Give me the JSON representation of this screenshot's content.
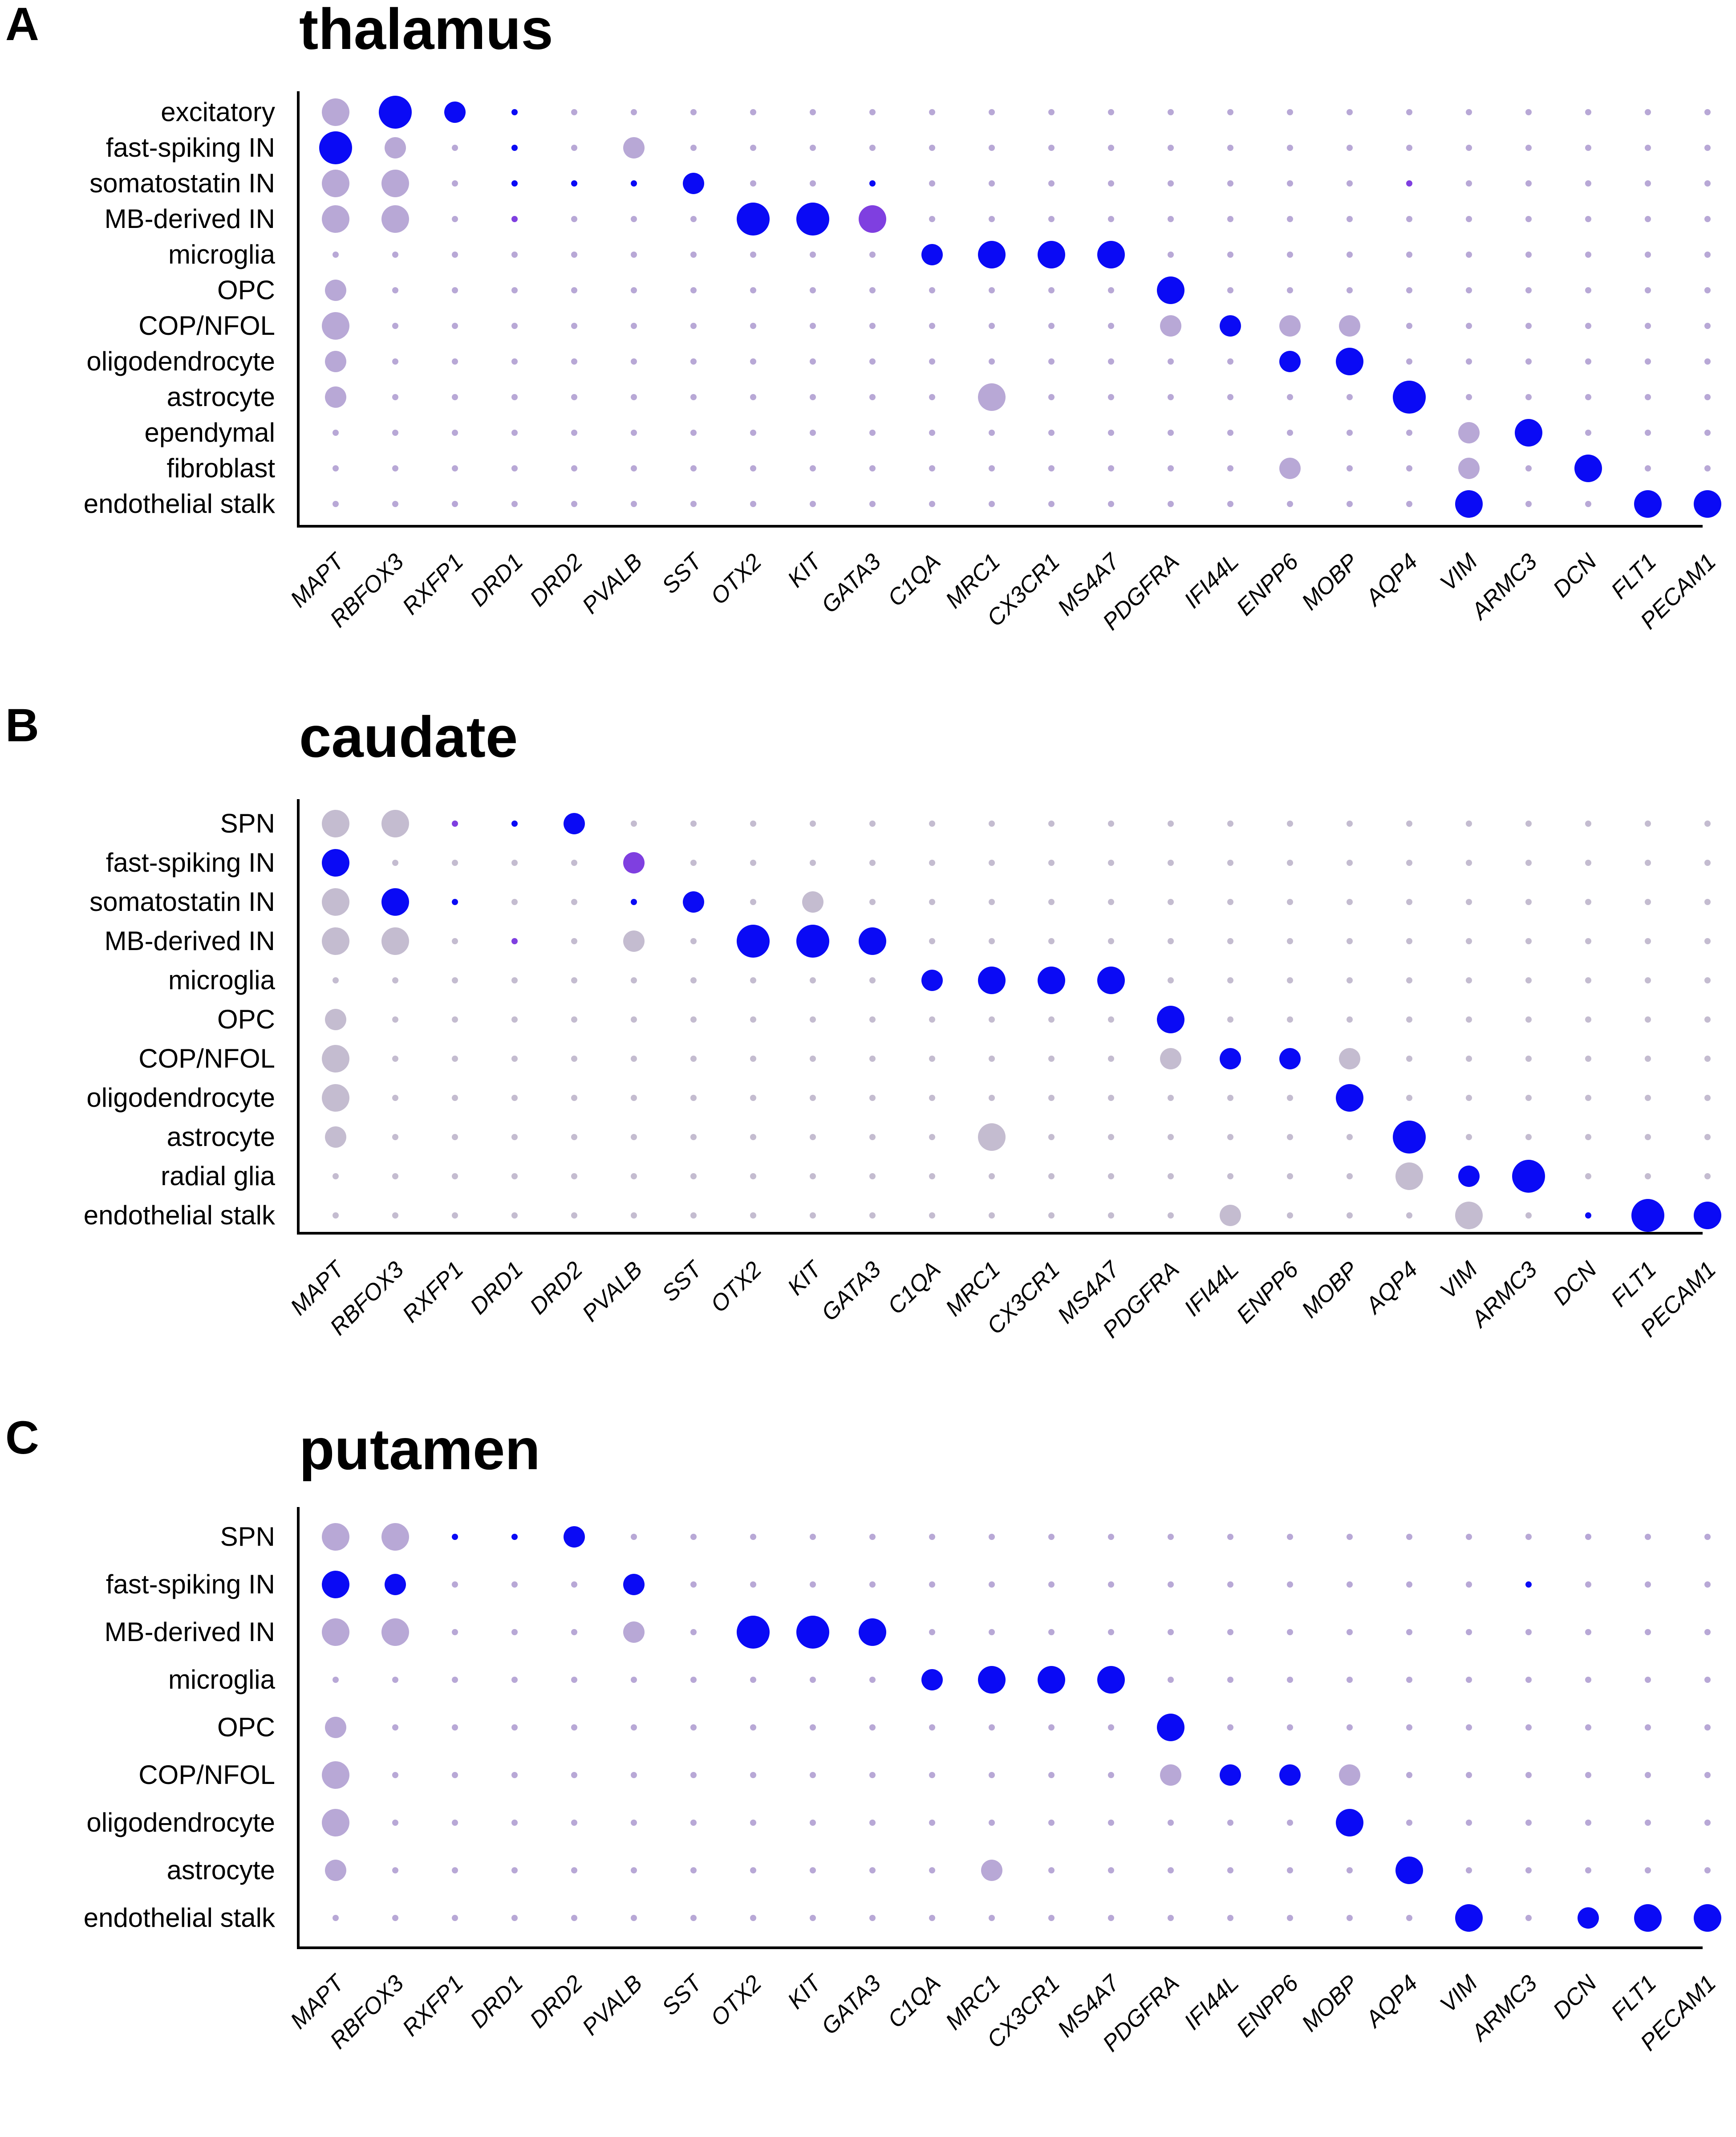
{
  "genes": [
    "MAPT",
    "RBFOX3",
    "RXFP1",
    "DRD1",
    "DRD2",
    "PVALB",
    "SST",
    "OTX2",
    "KIT",
    "GATA3",
    "C1QA",
    "MRC1",
    "CX3CR1",
    "MS4A7",
    "PDGFRA",
    "IFI44L",
    "ENPP6",
    "MOBP",
    "AQP4",
    "VIM",
    "ARMC3",
    "DCN",
    "FLT1",
    "PECAM1"
  ],
  "colors": {
    "high": "#0a0af5",
    "mid": "#7f3fe0",
    "low": "#b8a8d6",
    "grey": "#c4bcd0"
  },
  "chart_data": [
    {
      "type": "dot",
      "letter": "A",
      "title": "thalamus",
      "rows": [
        "excitatory",
        "fast-spiking IN",
        "somatostatin IN",
        "MB-derived IN",
        "microglia",
        "OPC",
        "COP/NFOL",
        "oligodendrocyte",
        "astrocyte",
        "ependymal",
        "fibroblast",
        "endothelial stalk"
      ],
      "size_scale": "0 = not detected, 1 = tiny, 4 = largest",
      "color_key": "h = high expression (blue), m = intermediate (purple), l = low (lavender)",
      "cells": [
        "3l 4h 2h 1h 1l 1l 1l 1l 1l 1l 1l 1l 1l 1l 1l 1l 1l 1l 1l 1l 1l 1l 1l 1l",
        "4h 2l 1l 1h 1l 2l 1l 1l 1l 1l 1l 1l 1l 1l 1l 1l 1l 1l 1l 1l 1l 1l 1l 1l",
        "3l 3l 1l 1h 1h 1h 2h 1l 1l 1h 1l 1l 1l 1l 1l 1l 1l 1l 1m 1l 1l 1l 1l 1l",
        "3l 3l 1l 1m 1l 1l 1l 4h 4h 3m 1l 1l 1l 1l 1l 1l 1l 1l 1l 1l 1l 1l 1l 1l",
        "1l 1l 1l 1l 1l 1l 1l 1l 1l 1l 2h 3h 3h 3h 1l 1l 1l 1l 1l 1l 1l 1l 1l 1l",
        "2l 1l 1l 1l 1l 1l 1l 1l 1l 1l 1l 1l 1l 1l 3h 1l 1l 1l 1l 1l 1l 1l 1l 1l",
        "3l 1l 1l 1l 1l 1l 1l 1l 1l 1l 1l 1l 1l 1l 2l 2h 2l 2l 1l 1l 1l 1l 1l 1l",
        "2l 1l 1l 1l 1l 1l 1l 1l 1l 1l 1l 1l 1l 1l 1l 1l 2h 3h 1l 1l 1l 1l 1l 1l",
        "2l 1l 1l 1l 1l 1l 1l 1l 1l 1l 1l 3l 1l 1l 1l 1l 1l 1l 4h 1l 1l 1l 1l 1l",
        "1l 1l 1l 1l 1l 1l 1l 1l 1l 1l 1l 1l 1l 1l 1l 1l 1l 1l 1l 2l 3h 1l 1l 1l",
        "1l 1l 1l 1l 1l 1l 1l 1l 1l 1l 1l 1l 1l 1l 1l 1l 2l 1l 1l 2l 1l 3h 1l 1l",
        "1l 1l 1l 1l 1l 1l 1l 1l 1l 1l 1l 1l 1l 1l 1l 1l 1l 1l 1l 3h 1l 1l 3h 3h"
      ]
    },
    {
      "type": "dot",
      "letter": "B",
      "title": "caudate",
      "rows": [
        "SPN",
        "fast-spiking IN",
        "somatostatin IN",
        "MB-derived IN",
        "microglia",
        "OPC",
        "COP/NFOL",
        "oligodendrocyte",
        "astrocyte",
        "radial glia",
        "endothelial stalk"
      ],
      "size_scale": "0 = not detected, 1 = tiny, 4 = largest",
      "color_key": "h = high expression (blue), m = intermediate (purple), g = low (grey)",
      "cells": [
        "3g 3g 1m 1h 2h 1g 1g 1g 1g 1g 1g 1g 1g 1g 1g 1g 1g 1g 1g 1g 1g 1g 1g 1g",
        "3h 1g 1g 1g 1g 2m 1g 1g 1g 1g 1g 1g 1g 1g 1g 1g 1g 1g 1g 1g 1g 1g 1g 1g",
        "3g 3h 1h 1g 1g 1h 2h 1g 2g 1g 1g 1g 1g 1g 1g 1g 1g 1g 1g 1g 1g 1g 1g 1g",
        "3g 3g 1g 1m 1g 2g 1g 4h 4h 3h 1g 1g 1g 1g 1g 1g 1g 1g 1g 1g 1g 1g 1g 1g",
        "1g 1g 1g 1g 1g 1g 1g 1g 1g 1g 2h 3h 3h 3h 1g 1g 1g 1g 1g 1g 1g 1g 1g 1g",
        "2g 1g 1g 1g 1g 1g 1g 1g 1g 1g 1g 1g 1g 1g 3h 1g 1g 1g 1g 1g 1g 1g 1g 1g",
        "3g 1g 1g 1g 1g 1g 1g 1g 1g 1g 1g 1g 1g 1g 2g 2h 2h 2g 1g 1g 1g 1g 1g 1g",
        "3g 1g 1g 1g 1g 1g 1g 1g 1g 1g 1g 1g 1g 1g 1g 1g 1g 3h 1g 1g 1g 1g 1g 1g",
        "2g 1g 1g 1g 1g 1g 1g 1g 1g 1g 1g 3g 1g 1g 1g 1g 1g 1g 4h 1g 1g 1g 1g 1g",
        "1g 1g 1g 1g 1g 1g 1g 1g 1g 1g 1g 1g 1g 1g 1g 1g 1g 1g 3g 2h 4h 1g 1g 1g",
        "1g 1g 1g 1g 1g 1g 1g 1g 1g 1g 1g 1g 1g 1g 1g 2g 1g 1g 1g 3g 1g 1h 4h 3h"
      ]
    },
    {
      "type": "dot",
      "letter": "C",
      "title": "putamen",
      "rows": [
        "SPN",
        "fast-spiking IN",
        "MB-derived IN",
        "microglia",
        "OPC",
        "COP/NFOL",
        "oligodendrocyte",
        "astrocyte",
        "endothelial stalk"
      ],
      "size_scale": "0 = not detected, 1 = tiny, 4 = largest",
      "color_key": "h = high expression (blue), l = low (lavender)",
      "cells": [
        "3l 3l 1h 1h 2h 1l 1l 1l 1l 1l 1l 1l 1l 1l 1l 1l 1l 1l 1l 1l 1l 1l 1l 1l",
        "3h 2h 1l 1l 1l 2h 1l 1l 1l 1l 1l 1l 1l 1l 1l 1l 1l 1l 1l 1l 1h 1l 1l 1l",
        "3l 3l 1l 1l 1l 2l 1l 4h 4h 3h 1l 1l 1l 1l 1l 1l 1l 1l 1l 1l 1l 1l 1l 1l",
        "1l 1l 1l 1l 1l 1l 1l 1l 1l 1l 2h 3h 3h 3h 1l 1l 1l 1l 1l 1l 1l 1l 1l 1l",
        "2l 1l 1l 1l 1l 1l 1l 1l 1l 1l 1l 1l 1l 1l 3h 1l 1l 1l 1l 1l 1l 1l 1l 1l",
        "3l 1l 1l 1l 1l 1l 1l 1l 1l 1l 1l 1l 1l 1l 2l 2h 2h 2l 1l 1l 1l 1l 1l 1l",
        "3l 1l 1l 1l 1l 1l 1l 1l 1l 1l 1l 1l 1l 1l 1l 1l 1l 3h 1l 1l 1l 1l 1l 1l",
        "2l 1l 1l 1l 1l 1l 1l 1l 1l 1l 1l 2l 1l 1l 1l 1l 1l 1l 3h 1l 1l 1l 1l 1l",
        "1l 1l 1l 1l 1l 1l 1l 1l 1l 1l 1l 1l 1l 1l 1l 1l 1l 1l 1l 3h 1l 2h 3h 3h"
      ]
    }
  ]
}
